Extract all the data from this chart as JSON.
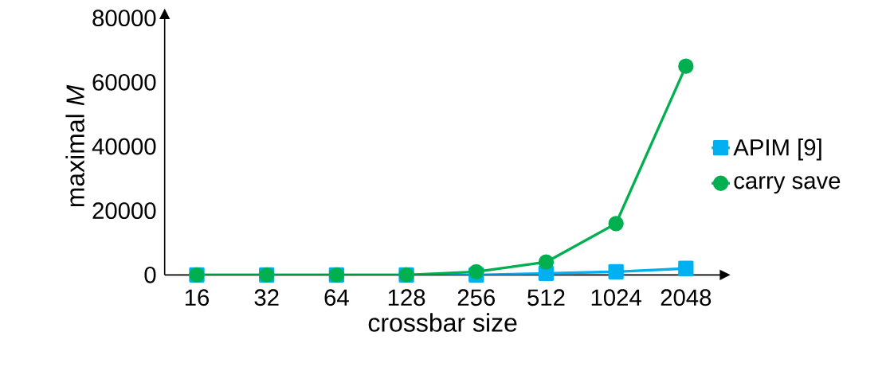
{
  "chart_data": {
    "type": "line",
    "xlabel": "crossbar size",
    "ylabel": "maximal *M*",
    "categories": [
      "16",
      "32",
      "64",
      "128",
      "256",
      "512",
      "1024",
      "2048"
    ],
    "series": [
      {
        "name": "APIM [9]",
        "color": "#00b0f0",
        "marker": "square",
        "values": [
          0,
          0,
          0,
          0,
          0,
          500,
          1000,
          2000
        ]
      },
      {
        "name": "carry save",
        "color": "#00b050",
        "marker": "circle",
        "values": [
          0,
          0,
          0,
          0,
          1000,
          4000,
          16000,
          65000
        ]
      }
    ],
    "ylim": [
      0,
      80000
    ],
    "yticks": [
      0,
      20000,
      40000,
      60000,
      80000
    ],
    "grid": false,
    "legend": "right",
    "line_style": "solid"
  }
}
